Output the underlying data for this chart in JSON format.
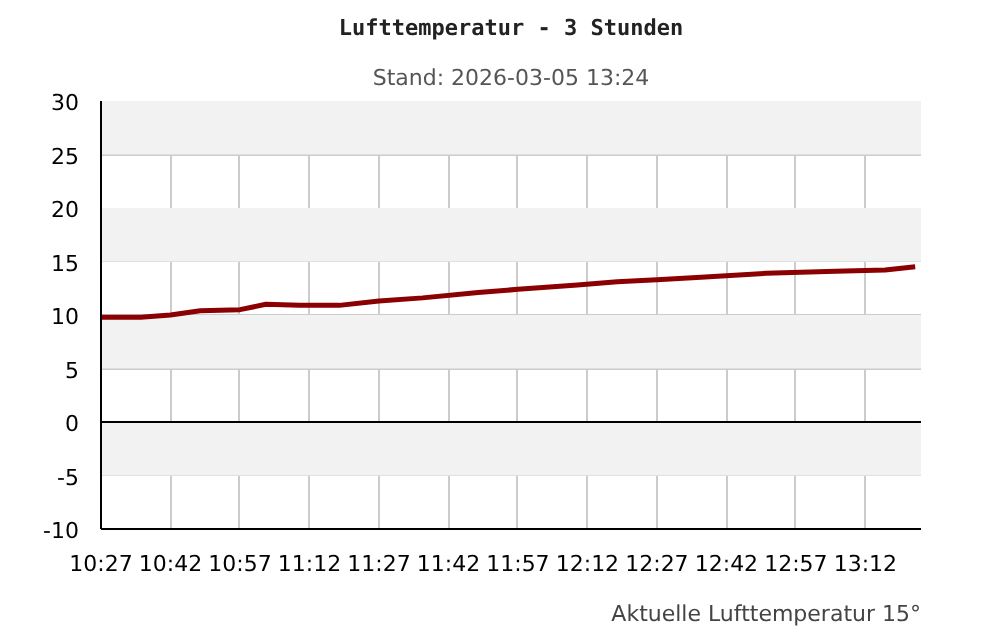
{
  "chart_data": {
    "type": "line",
    "title": "Lufttemperatur - 3 Stunden",
    "subtitle": "Stand: 2026-03-05 13:24",
    "annotations": [
      "Aktuelle Lufttemperatur 15°"
    ],
    "x": [
      10.45,
      10.593,
      10.7,
      10.807,
      10.95,
      11.043,
      11.164,
      11.307,
      11.45,
      11.607,
      11.807,
      11.95,
      12.164,
      12.307,
      12.45,
      12.593,
      12.843,
      13.093,
      13.271,
      13.379
    ],
    "series": [
      {
        "color": "#8b0000",
        "values": [
          9.8,
          9.8,
          10.0,
          10.4,
          10.5,
          11.0,
          10.9,
          10.9,
          11.3,
          11.6,
          12.1,
          12.4,
          12.8,
          13.1,
          13.3,
          13.5,
          13.9,
          14.1,
          14.2,
          14.5
        ]
      }
    ],
    "xlim": [
      10.45,
      13.4
    ],
    "xticks": [
      {
        "value": 10.45,
        "label": "10:27"
      },
      {
        "value": 10.7,
        "label": "10:42"
      },
      {
        "value": 10.95,
        "label": "10:57"
      },
      {
        "value": 11.2,
        "label": "11:12"
      },
      {
        "value": 11.45,
        "label": "11:27"
      },
      {
        "value": 11.7,
        "label": "11:42"
      },
      {
        "value": 11.95,
        "label": "11:57"
      },
      {
        "value": 12.2,
        "label": "12:12"
      },
      {
        "value": 12.45,
        "label": "12:27"
      },
      {
        "value": 12.7,
        "label": "12:42"
      },
      {
        "value": 12.95,
        "label": "12:57"
      },
      {
        "value": 13.2,
        "label": "13:12"
      }
    ],
    "ylim": [
      -10,
      30
    ],
    "yticks": [
      -10,
      -5,
      0,
      5,
      10,
      15,
      20,
      25,
      30
    ],
    "grid": true,
    "line_style": "solid",
    "bands": [
      {
        "axis": "y",
        "from": 25,
        "to": 30,
        "color": "#f2f2f2"
      },
      {
        "axis": "y",
        "from": 15,
        "to": 20,
        "color": "#f2f2f2"
      },
      {
        "axis": "y",
        "from": 5,
        "to": 10,
        "color": "#f2f2f2"
      },
      {
        "axis": "y",
        "from": -5,
        "to": 0,
        "color": "#f2f2f2"
      }
    ],
    "ref_lines": [
      {
        "axis": "y",
        "value": 0,
        "color": "#000000"
      }
    ]
  }
}
